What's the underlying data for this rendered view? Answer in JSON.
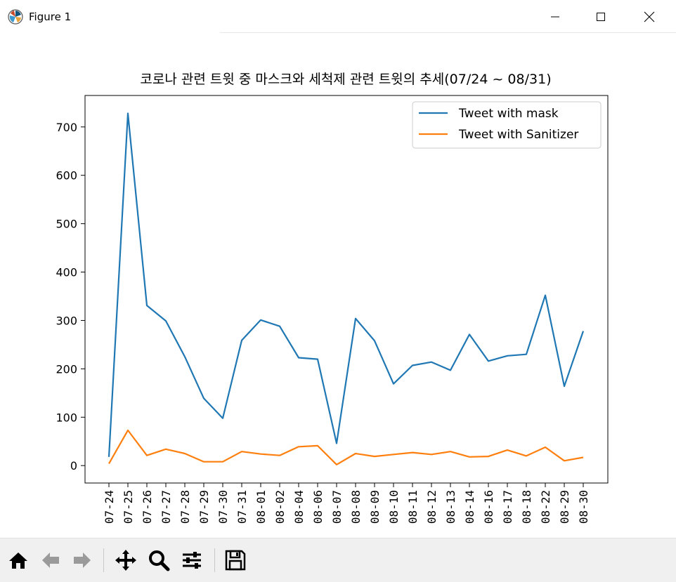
{
  "window": {
    "title": "Figure 1",
    "icons": [
      "matplotlib-icon",
      "minimize-icon",
      "maximize-icon",
      "close-icon"
    ]
  },
  "toolbar": {
    "icons": [
      "home-icon",
      "back-icon",
      "forward-icon",
      "pan-icon",
      "zoom-icon",
      "configure-subplots-icon",
      "save-icon"
    ]
  },
  "chart_data": {
    "type": "line",
    "title": "코로나 관련 트윗 중 마스크와 세척제 관련 트윗의 추세(07/24 ~ 08/31)",
    "xlabel": "",
    "ylabel": "",
    "categories": [
      "07-24",
      "07-25",
      "07-26",
      "07-27",
      "07-28",
      "07-29",
      "07-30",
      "07-31",
      "08-01",
      "08-02",
      "08-04",
      "08-06",
      "08-07",
      "08-08",
      "08-09",
      "08-10",
      "08-11",
      "08-12",
      "08-13",
      "08-14",
      "08-16",
      "08-17",
      "08-18",
      "08-22",
      "08-29",
      "08-30"
    ],
    "series": [
      {
        "name": "Tweet with mask",
        "color": "#1f77b4",
        "values": [
          18,
          728,
          331,
          299,
          225,
          139,
          98,
          259,
          301,
          288,
          223,
          220,
          46,
          304,
          258,
          169,
          207,
          214,
          197,
          271,
          216,
          227,
          230,
          352,
          164,
          278
        ]
      },
      {
        "name": "Tweet with Sanitizer",
        "color": "#ff7f0e",
        "values": [
          4,
          73,
          21,
          34,
          25,
          8,
          8,
          29,
          24,
          21,
          39,
          41,
          2,
          25,
          19,
          23,
          27,
          23,
          29,
          18,
          19,
          32,
          20,
          38,
          10,
          17
        ]
      }
    ],
    "yticks": [
      "0",
      "100",
      "200",
      "300",
      "400",
      "500",
      "600",
      "700"
    ],
    "ylim": [
      -36,
      765
    ],
    "grid": false,
    "legend_position": "top-right"
  }
}
